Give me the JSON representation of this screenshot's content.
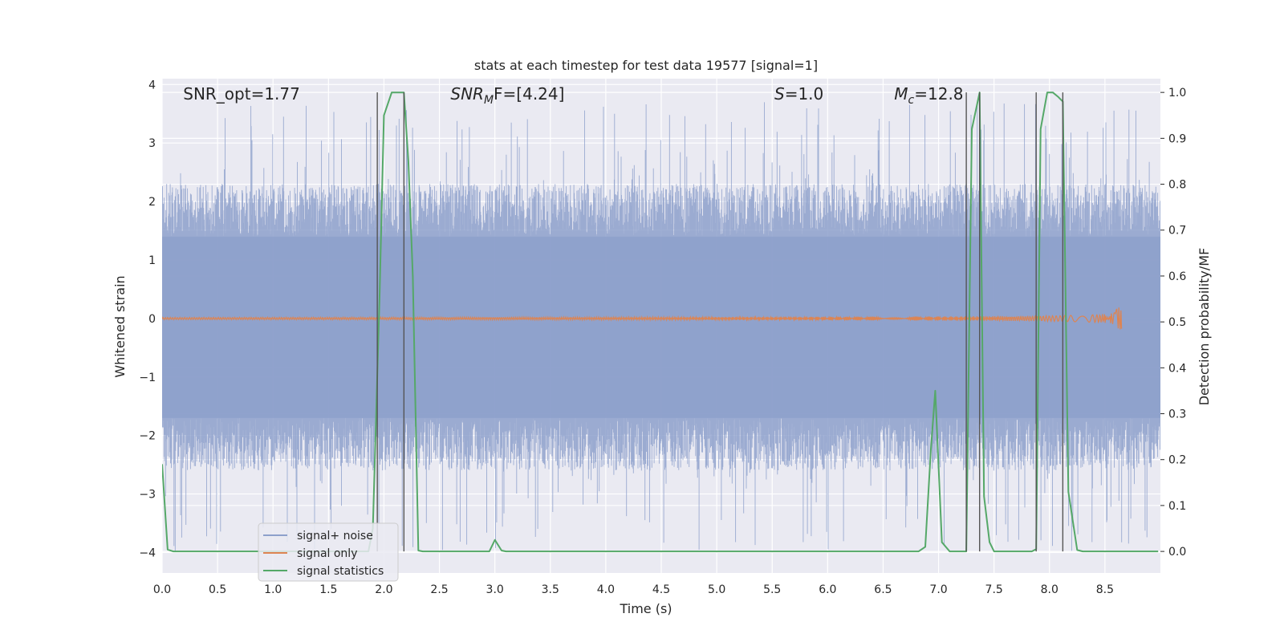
{
  "chart_data": {
    "type": "line",
    "title": "stats at each timestep for test data 19577 [signal=1]",
    "xlabel": "Time (s)",
    "ylabel_left": "Whitened strain",
    "ylabel_right": "Detection probability/MF",
    "xlim": [
      0.0,
      9.0
    ],
    "ylim_left": [
      -4.35,
      4.1
    ],
    "ylim_right": [
      -0.047,
      1.03
    ],
    "x_ticks": [
      0.0,
      0.5,
      1.0,
      1.5,
      2.0,
      2.5,
      3.0,
      3.5,
      4.0,
      4.5,
      5.0,
      5.5,
      6.0,
      6.5,
      7.0,
      7.5,
      8.0,
      8.5
    ],
    "x_tick_labels": [
      "0.0",
      "0.5",
      "1.0",
      "1.5",
      "2.0",
      "2.5",
      "3.0",
      "3.5",
      "4.0",
      "4.5",
      "5.0",
      "5.5",
      "6.0",
      "6.5",
      "7.0",
      "7.5",
      "8.0",
      "8.5"
    ],
    "y_left_ticks": [
      -4,
      -3,
      -2,
      -1,
      0,
      1,
      2,
      3,
      4
    ],
    "y_left_tick_labels": [
      "−4",
      "−3",
      "−2",
      "−1",
      "0",
      "1",
      "2",
      "3",
      "4"
    ],
    "y_right_ticks": [
      0.0,
      0.1,
      0.2,
      0.3,
      0.4,
      0.5,
      0.6,
      0.7,
      0.8,
      0.9,
      1.0
    ],
    "y_right_tick_labels": [
      "0.0",
      "0.1",
      "0.2",
      "0.3",
      "0.4",
      "0.5",
      "0.6",
      "0.7",
      "0.8",
      "0.9",
      "1.0"
    ],
    "grid": true,
    "annotations": [
      {
        "text": "SNR_opt=1.77",
        "x": 0.19
      },
      {
        "text": "SNR",
        "sub": "M",
        "after": "F=[4.24]",
        "x": 2.6,
        "italic_main": true
      },
      {
        "text": "S",
        "sub": "",
        "after": "=1.0",
        "x": 5.52,
        "italic_main": true
      },
      {
        "text": "M",
        "sub": "c",
        "after": "=12.8",
        "x": 6.6,
        "italic_main": true
      }
    ],
    "vertical_lines_x": [
      1.94,
      2.18,
      7.25,
      7.37,
      7.88,
      8.12
    ],
    "legend": {
      "placement": "lower-left",
      "entries": [
        "signal+ noise",
        "signal only",
        "signal statistics"
      ]
    },
    "series": [
      {
        "name": "signal+ noise",
        "kind": "strain-noise",
        "color": "#8da0cb",
        "axis": "left",
        "x_range": [
          0.0,
          9.0
        ],
        "band_lower": -1.7,
        "band_upper": 1.4,
        "peak_max": 3.7,
        "peak_min": -4.0
      },
      {
        "name": "signal only",
        "kind": "chirp",
        "color": "#dd8452",
        "axis": "left",
        "x_range": [
          0.0,
          8.65
        ],
        "max_amplitude": 0.28
      },
      {
        "name": "signal statistics",
        "kind": "line",
        "color": "#55a868",
        "axis": "right",
        "points": [
          [
            0.0,
            0.19
          ],
          [
            0.05,
            0.004
          ],
          [
            0.1,
            0.0
          ],
          [
            1.75,
            0.0
          ],
          [
            1.86,
            0.0
          ],
          [
            1.9,
            0.05
          ],
          [
            1.96,
            0.55
          ],
          [
            2.0,
            0.95
          ],
          [
            2.07,
            1.0
          ],
          [
            2.13,
            1.0
          ],
          [
            2.18,
            1.0
          ],
          [
            2.22,
            0.85
          ],
          [
            2.26,
            0.6
          ],
          [
            2.31,
            0.002
          ],
          [
            2.35,
            0.0
          ],
          [
            2.95,
            0.0
          ],
          [
            3.0,
            0.025
          ],
          [
            3.06,
            0.002
          ],
          [
            3.1,
            0.0
          ],
          [
            6.82,
            0.0
          ],
          [
            6.88,
            0.01
          ],
          [
            6.93,
            0.22
          ],
          [
            6.97,
            0.35
          ],
          [
            7.03,
            0.02
          ],
          [
            7.1,
            0.0
          ],
          [
            7.25,
            0.0
          ],
          [
            7.3,
            0.92
          ],
          [
            7.37,
            1.0
          ],
          [
            7.41,
            0.12
          ],
          [
            7.46,
            0.02
          ],
          [
            7.5,
            0.0
          ],
          [
            7.84,
            0.0
          ],
          [
            7.88,
            0.005
          ],
          [
            7.92,
            0.92
          ],
          [
            7.98,
            1.0
          ],
          [
            8.03,
            1.0
          ],
          [
            8.08,
            0.99
          ],
          [
            8.12,
            0.98
          ],
          [
            8.17,
            0.13
          ],
          [
            8.25,
            0.003
          ],
          [
            8.3,
            0.0
          ],
          [
            8.98,
            0.0
          ]
        ]
      }
    ]
  }
}
